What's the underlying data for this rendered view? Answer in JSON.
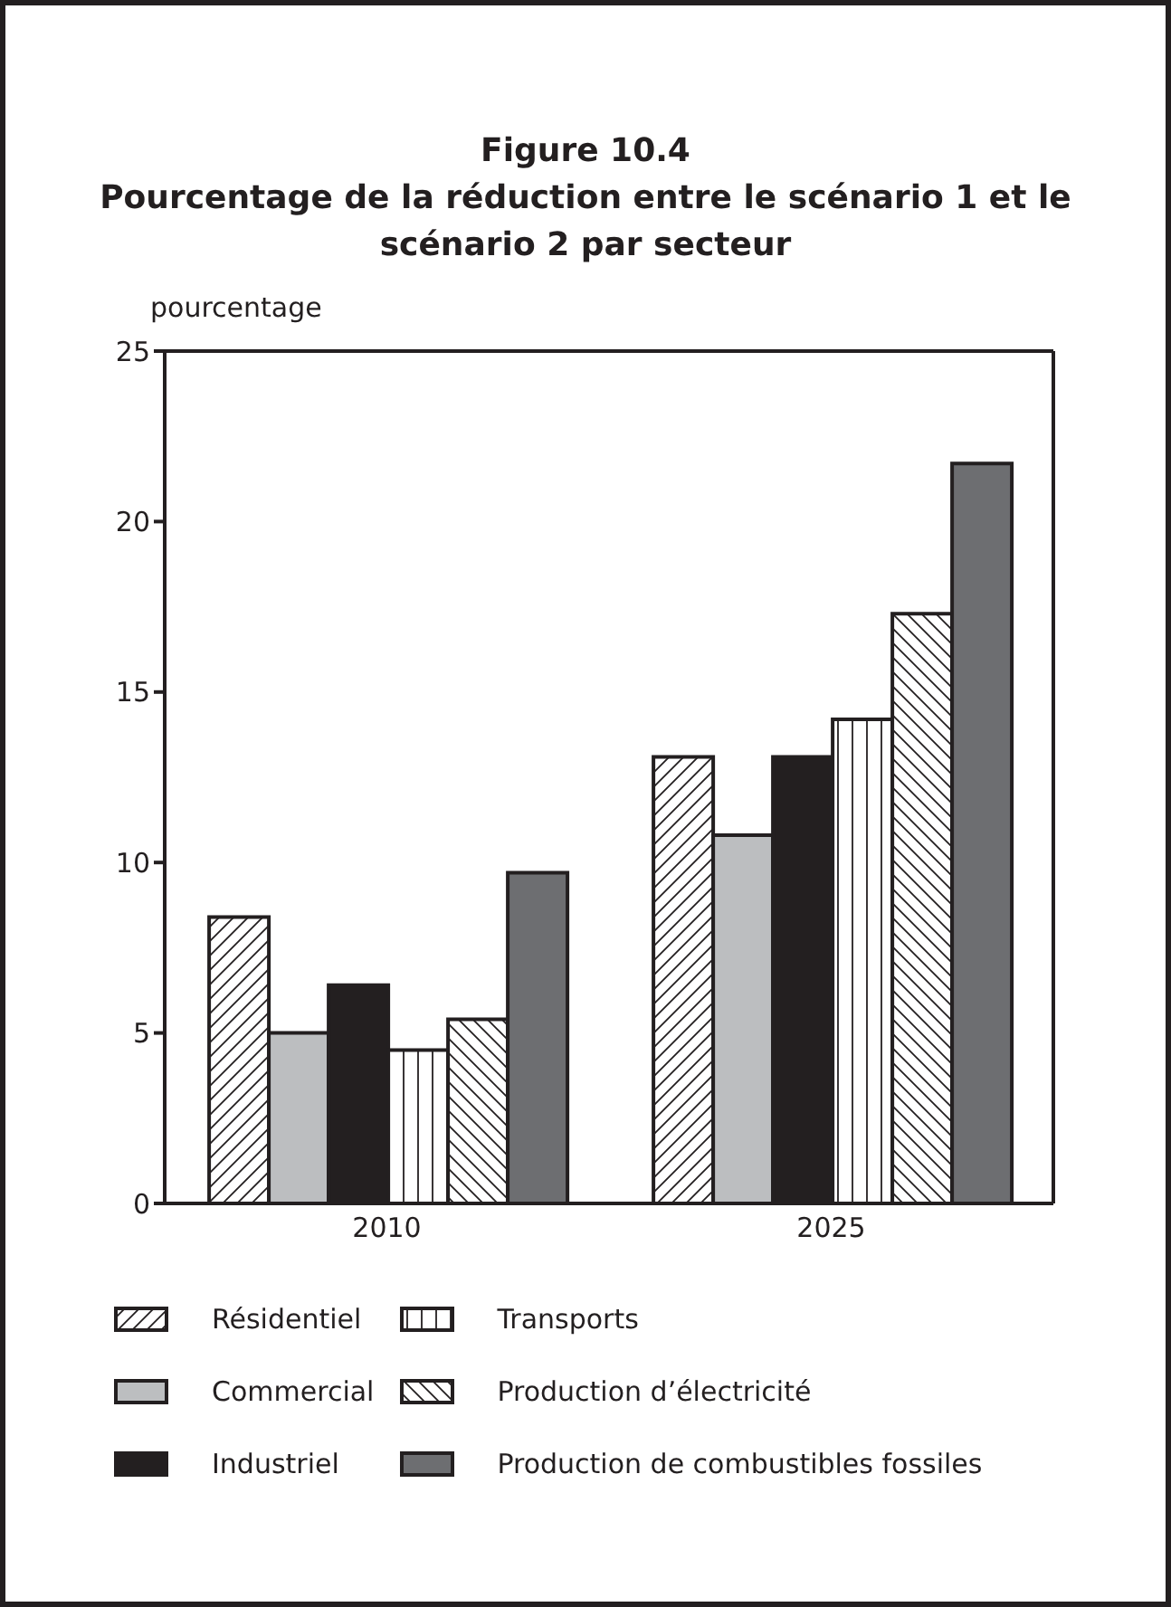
{
  "chart_data": {
    "type": "bar",
    "title": "Figure 10.4\nPourcentage de la réduction entre le scénario 1 et le scénario 2 par secteur",
    "ylabel": "pourcentage",
    "categories": [
      "2010",
      "2025"
    ],
    "series": [
      {
        "name": "Résidentiel",
        "color": "#231f20",
        "values": [
          8.4,
          13.1
        ]
      },
      {
        "name": "Commercial",
        "color": "#bcbec0",
        "values": [
          5.0,
          10.8
        ]
      },
      {
        "name": "Industriel",
        "color": "#231f20",
        "values": [
          6.4,
          13.1
        ]
      },
      {
        "name": "Transports",
        "color": "#231f20",
        "values": [
          4.5,
          14.2
        ]
      },
      {
        "name": "Production d’électricité",
        "color": "#231f20",
        "values": [
          5.4,
          17.3
        ]
      },
      {
        "name": "Production de combustibles fossiles",
        "color": "#6d6e71",
        "values": [
          9.7,
          21.7
        ]
      }
    ],
    "ylim": [
      0,
      25
    ],
    "yticks": [
      0,
      5,
      10,
      15,
      20,
      25
    ],
    "legend": "bottom"
  }
}
